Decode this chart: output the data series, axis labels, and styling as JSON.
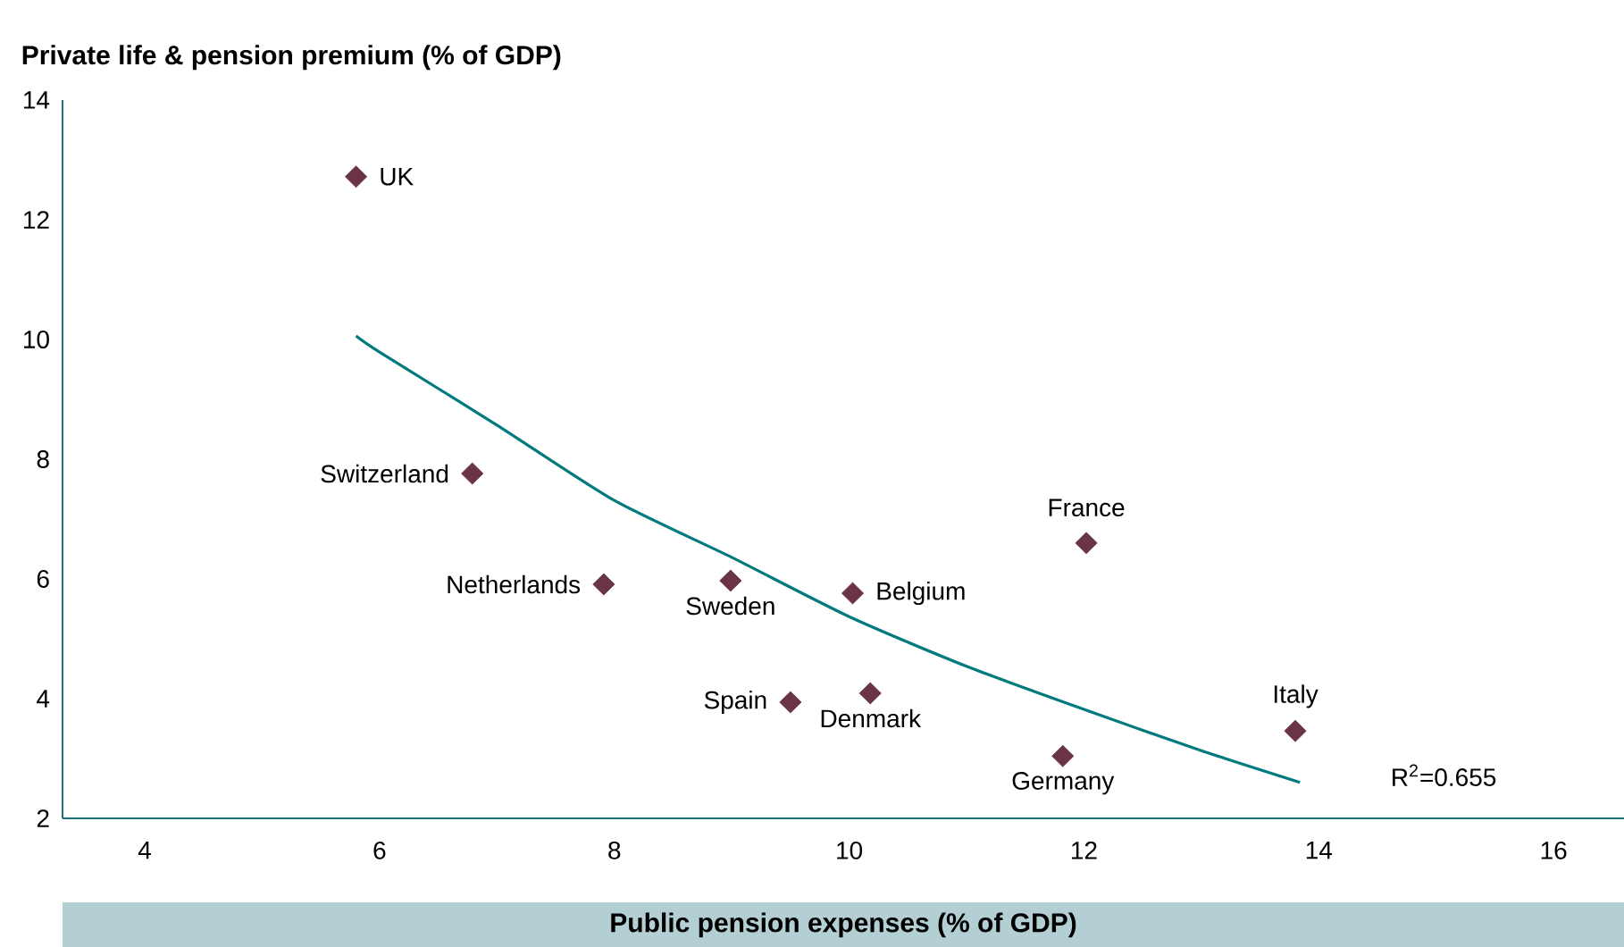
{
  "chart_data": {
    "type": "scatter",
    "xlabel": "Public pension expenses (% of GDP)",
    "ylabel": "Private life & pension premium (% of GDP)",
    "xlim": [
      3.3,
      16.6
    ],
    "ylim": [
      2,
      14
    ],
    "xticks": [
      4,
      6,
      8,
      10,
      12,
      14,
      16
    ],
    "yticks": [
      2,
      4,
      6,
      8,
      10,
      12,
      14
    ],
    "grid": false,
    "series": [
      {
        "color": "#6b3346",
        "marker": "diamond",
        "x": [
          5.8,
          6.79,
          7.91,
          8.99,
          10.03,
          12.02,
          9.5,
          10.18,
          11.82,
          13.8
        ],
        "values": [
          12.72,
          7.76,
          5.91,
          5.97,
          5.76,
          6.6,
          3.94,
          4.09,
          3.04,
          3.46
        ]
      },
      {
        "type": "line",
        "color": "#007a7e",
        "marker": "none",
        "x": [
          5.8,
          6,
          7,
          8,
          9,
          10,
          11,
          12,
          13,
          13.84
        ],
        "values": [
          10.06,
          9.79,
          8.57,
          7.31,
          6.36,
          5.37,
          4.54,
          3.82,
          3.13,
          2.6
        ]
      }
    ],
    "annotations": [
      {
        "text": "UK",
        "x": 5.8,
        "y": 12.72
      },
      {
        "text": "Switzerland",
        "x": 6.79,
        "y": 7.76
      },
      {
        "text": "Netherlands",
        "x": 7.91,
        "y": 5.91
      },
      {
        "text": "Sweden",
        "x": 8.99,
        "y": 5.97
      },
      {
        "text": "Belgium",
        "x": 10.03,
        "y": 5.76
      },
      {
        "text": "France",
        "x": 12.02,
        "y": 6.6
      },
      {
        "text": "Spain",
        "x": 9.5,
        "y": 3.94
      },
      {
        "text": "Denmark",
        "x": 10.18,
        "y": 4.09
      },
      {
        "text": "Germany",
        "x": 11.82,
        "y": 3.04
      },
      {
        "text": "Italy",
        "x": 13.8,
        "y": 3.46
      },
      "R$^{2}$=0.655"
    ]
  }
}
